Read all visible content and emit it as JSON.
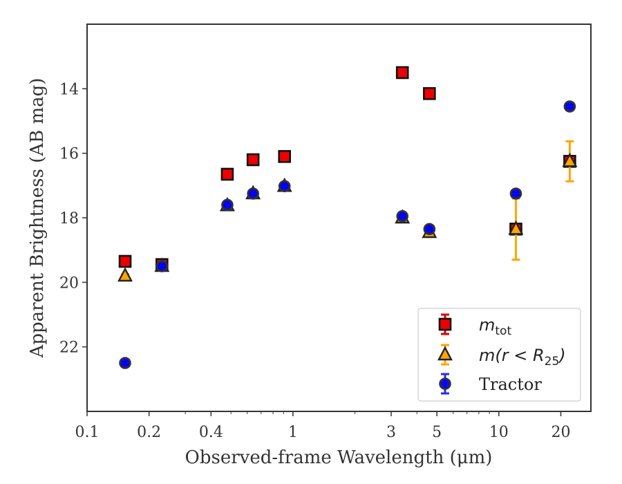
{
  "chart_data": {
    "type": "scatter",
    "xlabel": "Observed-frame Wavelength (μm)",
    "ylabel": "Apparent Brightness (AB mag)",
    "x_scale": "log",
    "xlim": [
      0.1,
      28
    ],
    "ylim": [
      24,
      12
    ],
    "y_inverted": true,
    "x_ticks": [
      {
        "value": 0.1,
        "label": "0.1"
      },
      {
        "value": 0.2,
        "label": "0.2"
      },
      {
        "value": 0.4,
        "label": "0.4"
      },
      {
        "value": 1,
        "label": "1"
      },
      {
        "value": 3,
        "label": "3"
      },
      {
        "value": 5,
        "label": "5"
      },
      {
        "value": 10,
        "label": "10"
      },
      {
        "value": 20,
        "label": "20"
      }
    ],
    "y_ticks": [
      {
        "value": 14,
        "label": "14"
      },
      {
        "value": 16,
        "label": "16"
      },
      {
        "value": 18,
        "label": "18"
      },
      {
        "value": 20,
        "label": "20"
      },
      {
        "value": 22,
        "label": "22"
      }
    ],
    "grid": false,
    "legend_position": "lower-right",
    "series": [
      {
        "name": "m_tot",
        "legend_main": "m",
        "legend_sub": "tot",
        "marker": "square",
        "color": "#ee0000",
        "error_color": "#dd0000",
        "points": [
          {
            "x": 0.153,
            "y": 19.35,
            "err": 0.05
          },
          {
            "x": 0.231,
            "y": 19.45,
            "err": 0.05
          },
          {
            "x": 0.48,
            "y": 16.65,
            "err": 0.05
          },
          {
            "x": 0.64,
            "y": 16.2,
            "err": 0.05
          },
          {
            "x": 0.91,
            "y": 16.1,
            "err": 0.05
          },
          {
            "x": 3.4,
            "y": 13.5,
            "err": 0.05
          },
          {
            "x": 4.6,
            "y": 14.15,
            "err": 0.05
          },
          {
            "x": 12.1,
            "y": 18.35,
            "err": 0.05
          },
          {
            "x": 22.1,
            "y": 16.25,
            "err": 0.05
          }
        ]
      },
      {
        "name": "m(r<R_25)",
        "legend_text": "m(r < R",
        "legend_sub": "25",
        "legend_close": ")",
        "marker": "triangle",
        "color": "#ffa500",
        "error_color": "#ffa500",
        "points": [
          {
            "x": 0.153,
            "y": 19.8,
            "err": 0.05
          },
          {
            "x": 0.231,
            "y": 19.5,
            "err": 0.05
          },
          {
            "x": 0.48,
            "y": 17.62,
            "err": 0.05
          },
          {
            "x": 0.64,
            "y": 17.25,
            "err": 0.05
          },
          {
            "x": 0.91,
            "y": 17.02,
            "err": 0.05
          },
          {
            "x": 3.4,
            "y": 18.0,
            "err": 0.05
          },
          {
            "x": 4.6,
            "y": 18.45,
            "err": 0.05
          },
          {
            "x": 12.1,
            "y": 18.35,
            "err": 0.95
          },
          {
            "x": 22.1,
            "y": 16.25,
            "err": 0.62
          }
        ]
      },
      {
        "name": "Tractor",
        "legend_text": "Tractor",
        "marker": "circle",
        "color": "#0000ee",
        "error_color": "#2b2bee",
        "points": [
          {
            "x": 0.153,
            "y": 22.5,
            "err": 0.05
          },
          {
            "x": 0.231,
            "y": 19.5,
            "err": 0.05
          },
          {
            "x": 0.48,
            "y": 17.6,
            "err": 0.05
          },
          {
            "x": 0.64,
            "y": 17.25,
            "err": 0.05
          },
          {
            "x": 0.91,
            "y": 17.02,
            "err": 0.05
          },
          {
            "x": 3.4,
            "y": 17.95,
            "err": 0.05
          },
          {
            "x": 4.6,
            "y": 18.35,
            "err": 0.05
          },
          {
            "x": 12.1,
            "y": 17.25,
            "err": 0.05
          },
          {
            "x": 22.1,
            "y": 14.55,
            "err": 0.05
          }
        ]
      }
    ]
  }
}
